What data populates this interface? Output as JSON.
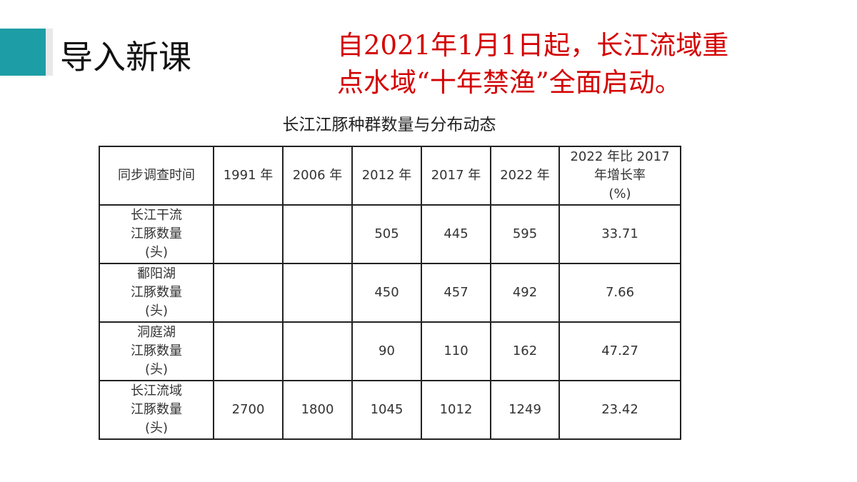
{
  "header": {
    "title": "导入新课",
    "notice_lines": [
      "自2021年1月1日起，长江流域重",
      "点水域“十年禁渔”全面启动。"
    ]
  },
  "table": {
    "title": "长江江豚种群数量与分布动态",
    "columns": [
      [
        "同步调查时间"
      ],
      [
        "1991 年"
      ],
      [
        "2006 年"
      ],
      [
        "2012 年"
      ],
      [
        "2017 年"
      ],
      [
        "2022 年"
      ],
      [
        "2022 年比 2017",
        "年增长率",
        "(%)"
      ]
    ],
    "rows": [
      [
        [
          "长江干流",
          "江豚数量",
          "(头)"
        ],
        null,
        null,
        505,
        445,
        595,
        33.71
      ],
      [
        [
          "鄱阳湖",
          "江豚数量",
          "(头)"
        ],
        null,
        null,
        450,
        457,
        492,
        7.66
      ],
      [
        [
          "洞庭湖",
          "江豚数量",
          "(头)"
        ],
        null,
        null,
        90,
        110,
        162,
        47.27
      ],
      [
        [
          "长江流域",
          "江豚数量",
          "(头)"
        ],
        2700,
        1800,
        1045,
        1012,
        1249,
        23.42
      ]
    ]
  }
}
